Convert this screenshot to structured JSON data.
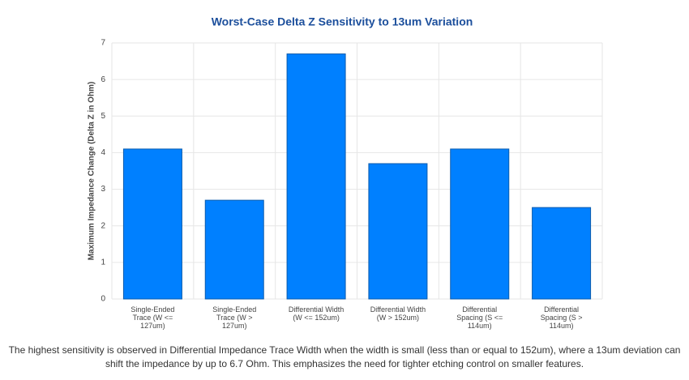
{
  "chart_data": {
    "type": "bar",
    "title": "Worst-Case Delta Z Sensitivity to 13um Variation",
    "y_label": "Maximum Impedance Change (Delta Z in Ohm)",
    "categories": [
      "Single-Ended Trace (W <= 127um)",
      "Single-Ended Trace (W > 127um)",
      "Differential Width (W <= 152um)",
      "Differential Width (W > 152um)",
      "Differential Spacing (S <= 114um)",
      "Differential Spacing (S > 114um)"
    ],
    "values": [
      4.1,
      2.7,
      6.7,
      3.7,
      4.1,
      2.5
    ],
    "color": "#0080ff",
    "ylim": [
      0,
      7
    ],
    "yticks": [
      0,
      1,
      2,
      3,
      4,
      5,
      6,
      7
    ],
    "grid": true
  },
  "caption": "The highest sensitivity is observed in Differential Impedance Trace Width when the width is small (less than or equal to 152um), where a 13um deviation can shift the impedance by up to 6.7 Ohm. This emphasizes the need for tighter etching control on smaller features."
}
